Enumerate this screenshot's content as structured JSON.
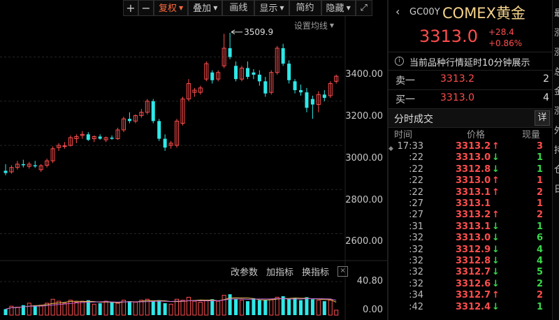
{
  "toolbar": {
    "zoom_in": "+",
    "zoom_out": "−",
    "fuquan": "复权",
    "overlay": "叠加",
    "draw": "画线",
    "display": "显示",
    "simple": "简约",
    "hide": "隐藏",
    "expand": "⤢",
    "accent_color": "#ff6a3c"
  },
  "chart": {
    "ma_setting": "设置均线",
    "max_label": "3509.9",
    "y_labels": [
      "3400.00",
      "3200.00",
      "3000.00",
      "2800.00",
      "2600.00"
    ],
    "vol_labels": [
      "40.80",
      "0.00"
    ],
    "indicator_buttons": [
      "改参数",
      "加指标",
      "换指标"
    ],
    "indicator_close": "×",
    "up_color": "#ff4d4d",
    "down_color": "#2ee8e8"
  },
  "chart_data": {
    "type": "candlestick",
    "title": "",
    "ylim": [
      2510,
      3560
    ],
    "y_ticks": [
      3400,
      3200,
      3000,
      2800,
      2600
    ],
    "max_price": 3509.9,
    "vol_ylim": [
      0,
      40.8
    ],
    "candles": [
      {
        "o": 2885,
        "h": 2915,
        "l": 2865,
        "c": 2875
      },
      {
        "o": 2880,
        "h": 2910,
        "l": 2872,
        "c": 2900
      },
      {
        "o": 2900,
        "h": 2930,
        "l": 2890,
        "c": 2915
      },
      {
        "o": 2915,
        "h": 2935,
        "l": 2900,
        "c": 2910
      },
      {
        "o": 2905,
        "h": 2925,
        "l": 2895,
        "c": 2915
      },
      {
        "o": 2910,
        "h": 2930,
        "l": 2898,
        "c": 2905
      },
      {
        "o": 2890,
        "h": 2915,
        "l": 2880,
        "c": 2908
      },
      {
        "o": 2910,
        "h": 2940,
        "l": 2900,
        "c": 2930
      },
      {
        "o": 2930,
        "h": 2995,
        "l": 2920,
        "c": 2985
      },
      {
        "o": 2990,
        "h": 3010,
        "l": 2975,
        "c": 3000
      },
      {
        "o": 2995,
        "h": 3015,
        "l": 2985,
        "c": 2998
      },
      {
        "o": 3000,
        "h": 3045,
        "l": 2995,
        "c": 3035
      },
      {
        "o": 3030,
        "h": 3050,
        "l": 3010,
        "c": 3040
      },
      {
        "o": 3045,
        "h": 3065,
        "l": 3030,
        "c": 3050
      },
      {
        "o": 3050,
        "h": 3060,
        "l": 3020,
        "c": 3025
      },
      {
        "o": 3030,
        "h": 3045,
        "l": 3015,
        "c": 3040
      },
      {
        "o": 3040,
        "h": 3050,
        "l": 3025,
        "c": 3030
      },
      {
        "o": 3025,
        "h": 3040,
        "l": 3015,
        "c": 3035
      },
      {
        "o": 3035,
        "h": 3045,
        "l": 3025,
        "c": 3030
      },
      {
        "o": 3030,
        "h": 3080,
        "l": 3025,
        "c": 3070
      },
      {
        "o": 3070,
        "h": 3130,
        "l": 3060,
        "c": 3120
      },
      {
        "o": 3120,
        "h": 3150,
        "l": 3100,
        "c": 3110
      },
      {
        "o": 3110,
        "h": 3140,
        "l": 3100,
        "c": 3135
      },
      {
        "o": 3135,
        "h": 3165,
        "l": 3125,
        "c": 3150
      },
      {
        "o": 3150,
        "h": 3210,
        "l": 3140,
        "c": 3200
      },
      {
        "o": 3200,
        "h": 3210,
        "l": 3100,
        "c": 3110
      },
      {
        "o": 3110,
        "h": 3120,
        "l": 3020,
        "c": 3030
      },
      {
        "o": 3030,
        "h": 3050,
        "l": 2975,
        "c": 2990
      },
      {
        "o": 3000,
        "h": 3020,
        "l": 2985,
        "c": 3010
      },
      {
        "o": 3000,
        "h": 3120,
        "l": 2990,
        "c": 3110
      },
      {
        "o": 3100,
        "h": 3220,
        "l": 3090,
        "c": 3210
      },
      {
        "o": 3210,
        "h": 3300,
        "l": 3200,
        "c": 3280
      },
      {
        "o": 3240,
        "h": 3260,
        "l": 3220,
        "c": 3250
      },
      {
        "o": 3240,
        "h": 3270,
        "l": 3230,
        "c": 3260
      },
      {
        "o": 3300,
        "h": 3380,
        "l": 3290,
        "c": 3370
      },
      {
        "o": 3330,
        "h": 3340,
        "l": 3280,
        "c": 3295
      },
      {
        "o": 3300,
        "h": 3340,
        "l": 3290,
        "c": 3330
      },
      {
        "o": 3360,
        "h": 3505,
        "l": 3350,
        "c": 3440
      },
      {
        "o": 3440,
        "h": 3509.9,
        "l": 3390,
        "c": 3400
      },
      {
        "o": 3360,
        "h": 3380,
        "l": 3290,
        "c": 3300
      },
      {
        "o": 3300,
        "h": 3360,
        "l": 3290,
        "c": 3350
      },
      {
        "o": 3350,
        "h": 3380,
        "l": 3300,
        "c": 3310
      },
      {
        "o": 3330,
        "h": 3345,
        "l": 3300,
        "c": 3320
      },
      {
        "o": 3320,
        "h": 3340,
        "l": 3270,
        "c": 3290
      },
      {
        "o": 3290,
        "h": 3310,
        "l": 3220,
        "c": 3235
      },
      {
        "o": 3240,
        "h": 3340,
        "l": 3230,
        "c": 3330
      },
      {
        "o": 3330,
        "h": 3450,
        "l": 3320,
        "c": 3440
      },
      {
        "o": 3440,
        "h": 3460,
        "l": 3360,
        "c": 3370
      },
      {
        "o": 3370,
        "h": 3385,
        "l": 3280,
        "c": 3295
      },
      {
        "o": 3290,
        "h": 3300,
        "l": 3235,
        "c": 3250
      },
      {
        "o": 3250,
        "h": 3275,
        "l": 3225,
        "c": 3240
      },
      {
        "o": 3240,
        "h": 3260,
        "l": 3150,
        "c": 3170
      },
      {
        "o": 3210,
        "h": 3225,
        "l": 3120,
        "c": 3185
      },
      {
        "o": 3185,
        "h": 3245,
        "l": 3150,
        "c": 3230
      },
      {
        "o": 3230,
        "h": 3250,
        "l": 3200,
        "c": 3215
      },
      {
        "o": 3225,
        "h": 3290,
        "l": 3215,
        "c": 3280
      },
      {
        "o": 3290,
        "h": 3320,
        "l": 3280,
        "c": 3313
      }
    ],
    "volume": [
      6,
      9,
      8,
      10,
      12,
      9,
      10,
      12,
      16,
      14,
      12,
      15,
      13,
      14,
      15,
      11,
      12,
      14,
      13,
      12,
      15,
      14,
      13,
      15,
      16,
      14,
      15,
      12,
      11,
      16,
      15,
      18,
      14,
      13,
      15,
      16,
      14,
      20,
      21,
      16,
      15,
      14,
      17,
      15,
      15,
      16,
      18,
      19,
      16,
      17,
      15,
      18,
      16,
      15,
      14,
      15,
      5
    ]
  },
  "quote": {
    "back_arrow": "‹",
    "code": "GC00Y",
    "name": "COMEX黄金",
    "name_color": "#f5d38a",
    "price": "3313.0",
    "change": "+28.4",
    "change_pct": "+0.86%",
    "notice": "当前品种行情延时10分钟展示",
    "notice_icon": "info-icon"
  },
  "orderbook": [
    {
      "label": "卖一",
      "price": "3313.2",
      "vol": "2"
    },
    {
      "label": "买一",
      "price": "3313.0",
      "vol": "4"
    }
  ],
  "ticks": {
    "title": "分时成交",
    "detail": "详",
    "headers": [
      "时间",
      "价格",
      "现量"
    ],
    "rows": [
      {
        "time": "17:33",
        "price": "3313.2",
        "dir": "up",
        "vol": "3"
      },
      {
        "time": ":22",
        "price": "3313.0",
        "dir": "down",
        "vol": "1"
      },
      {
        "time": ":22",
        "price": "3312.8",
        "dir": "down",
        "vol": "1"
      },
      {
        "time": ":22",
        "price": "3313.0",
        "dir": "up",
        "vol": "1"
      },
      {
        "time": ":22",
        "price": "3313.1",
        "dir": "up",
        "vol": "2"
      },
      {
        "time": ":27",
        "price": "3313.1",
        "dir": "none",
        "vol": "1"
      },
      {
        "time": ":27",
        "price": "3313.2",
        "dir": "up",
        "vol": "2"
      },
      {
        "time": ":31",
        "price": "3313.1",
        "dir": "down",
        "vol": "1"
      },
      {
        "time": ":32",
        "price": "3313.0",
        "dir": "down",
        "vol": "6"
      },
      {
        "time": ":32",
        "price": "3312.9",
        "dir": "down",
        "vol": "4"
      },
      {
        "time": ":32",
        "price": "3312.8",
        "dir": "down",
        "vol": "4"
      },
      {
        "time": ":32",
        "price": "3312.7",
        "dir": "down",
        "vol": "5"
      },
      {
        "time": ":32",
        "price": "3312.6",
        "dir": "down",
        "vol": "2"
      },
      {
        "time": ":34",
        "price": "3312.7",
        "dir": "up",
        "vol": "2"
      },
      {
        "time": ":42",
        "price": "3312.4",
        "dir": "down",
        "vol": "1"
      }
    ]
  },
  "edge_chars": [
    "最",
    "涨",
    "涨",
    "总",
    "金",
    "涨",
    "外",
    "持",
    "仓",
    "日"
  ]
}
